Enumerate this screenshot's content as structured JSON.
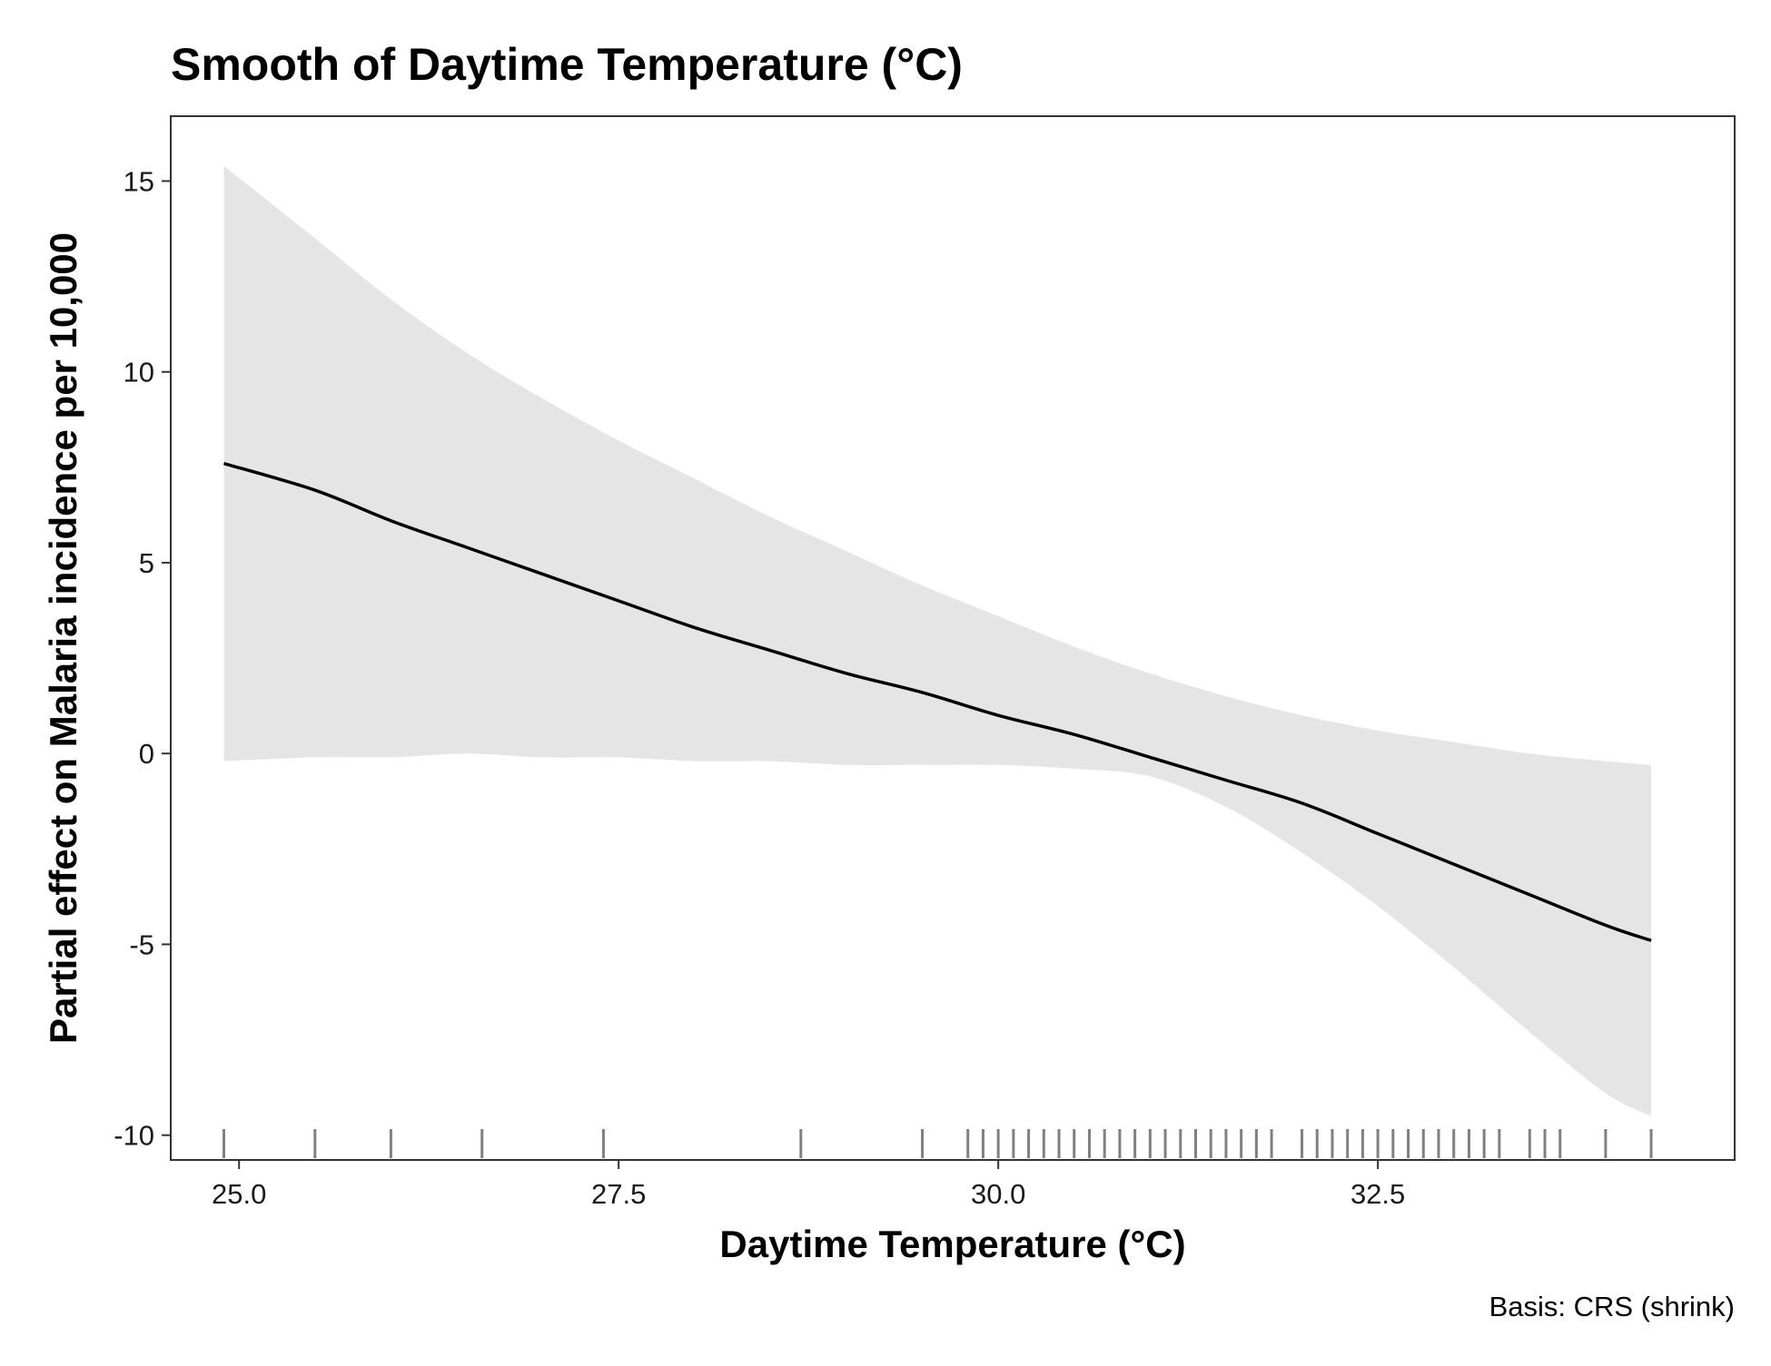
{
  "chart_data": {
    "type": "line",
    "title": "Smooth of Daytime Temperature (°C)",
    "xlabel": "Daytime Temperature (°C)",
    "ylabel": "Partial effect on Malaria incidence per 10,000",
    "caption": "Basis: CRS (shrink)",
    "xlim": [
      24.55,
      34.85
    ],
    "ylim": [
      -10.65,
      16.7
    ],
    "x_ticks": [
      25.0,
      27.5,
      30.0,
      32.5
    ],
    "x_tick_labels": [
      "25.0",
      "27.5",
      "30.0",
      "32.5"
    ],
    "y_ticks": [
      15,
      10,
      5,
      0,
      -5,
      -10
    ],
    "y_tick_labels": [
      "15",
      "10",
      "5",
      "0",
      "-5",
      "-10"
    ],
    "grid": false,
    "series": [
      {
        "role": "estimate",
        "x": [
          24.9,
          25.5,
          26.0,
          26.5,
          27.0,
          27.5,
          28.0,
          28.5,
          29.0,
          29.5,
          30.0,
          30.5,
          31.0,
          31.5,
          32.0,
          32.5,
          33.0,
          33.5,
          34.0,
          34.3
        ],
        "y": [
          7.6,
          6.9,
          6.1,
          5.4,
          4.7,
          4.0,
          3.3,
          2.7,
          2.1,
          1.6,
          1.0,
          0.5,
          -0.1,
          -0.7,
          -1.3,
          -2.1,
          -2.9,
          -3.7,
          -4.5,
          -4.9
        ]
      },
      {
        "role": "upper_ci",
        "x": [
          24.9,
          25.5,
          26.0,
          26.5,
          27.0,
          27.5,
          28.0,
          28.5,
          29.0,
          29.5,
          30.0,
          30.5,
          31.0,
          31.5,
          32.0,
          32.5,
          33.0,
          33.5,
          34.0,
          34.3
        ],
        "y": [
          15.4,
          13.5,
          11.9,
          10.5,
          9.3,
          8.2,
          7.2,
          6.2,
          5.3,
          4.4,
          3.6,
          2.8,
          2.1,
          1.5,
          1.0,
          0.6,
          0.3,
          0.0,
          -0.2,
          -0.3
        ]
      },
      {
        "role": "lower_ci",
        "x": [
          24.9,
          25.5,
          26.0,
          26.5,
          27.0,
          27.5,
          28.0,
          28.5,
          29.0,
          29.5,
          30.0,
          30.5,
          31.0,
          31.5,
          32.0,
          32.5,
          33.0,
          33.5,
          34.0,
          34.3
        ],
        "y": [
          -0.2,
          -0.1,
          -0.1,
          0.0,
          -0.1,
          -0.1,
          -0.2,
          -0.2,
          -0.3,
          -0.3,
          -0.3,
          -0.4,
          -0.6,
          -1.4,
          -2.6,
          -4.0,
          -5.6,
          -7.3,
          -8.9,
          -9.5
        ]
      }
    ],
    "rug": [
      24.9,
      25.5,
      26.0,
      26.6,
      27.4,
      28.7,
      29.5,
      29.8,
      29.9,
      30.0,
      30.1,
      30.2,
      30.3,
      30.4,
      30.5,
      30.6,
      30.7,
      30.8,
      30.9,
      31.0,
      31.1,
      31.2,
      31.3,
      31.4,
      31.5,
      31.6,
      31.7,
      31.8,
      32.0,
      32.1,
      32.2,
      32.3,
      32.4,
      32.5,
      32.6,
      32.7,
      32.8,
      32.9,
      33.0,
      33.1,
      33.2,
      33.3,
      33.5,
      33.6,
      33.7,
      34.0,
      34.3
    ],
    "colors": {
      "line": "#000000",
      "ribbon": "#e5e5e5",
      "rug": "#808080",
      "panel_border": "#333333",
      "tick": "#333333"
    }
  }
}
